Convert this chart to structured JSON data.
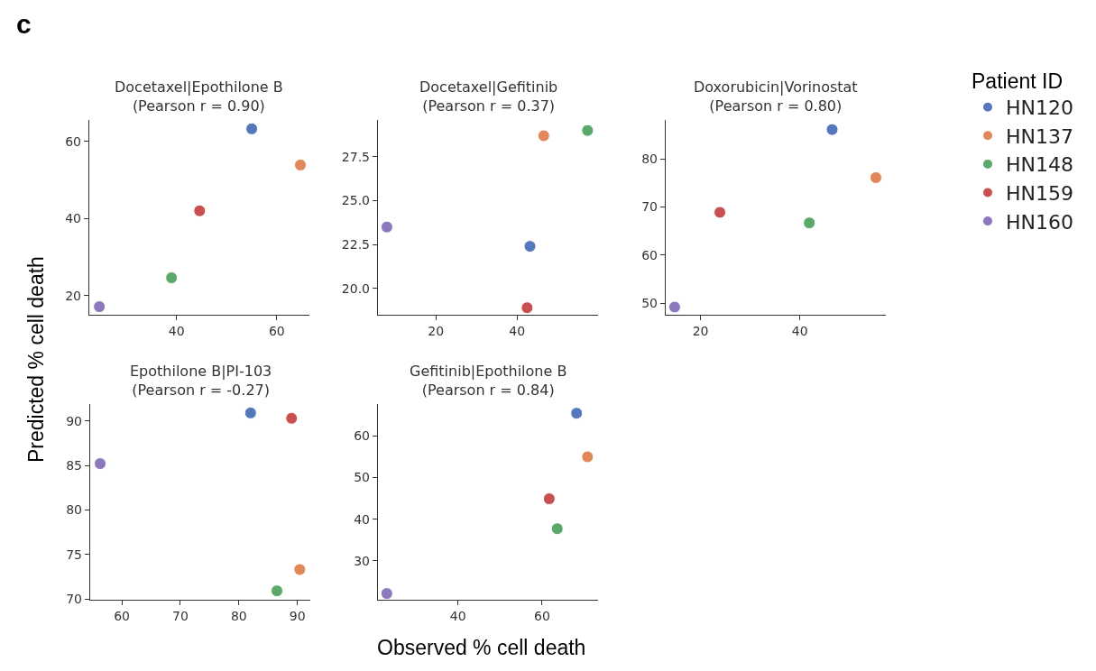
{
  "chart_data": [
    {
      "type": "scatter",
      "title": "Docetaxel|Epothilone B",
      "subtitle": "(Pearson r = 0.90)",
      "xlabel": "Observed % cell death",
      "ylabel": "Predicted % cell death",
      "legend_title": "Patient ID",
      "legend": "right",
      "marker": "circle",
      "annotations": [
        "c"
      ],
      "xlim": [
        22.6,
        66.5
      ],
      "ylim": [
        15,
        65.6
      ],
      "xticks": [
        40,
        60
      ],
      "yticks": [
        20,
        40,
        60
      ],
      "series": [
        {
          "name": "HN120",
          "color": "#5577bb",
          "x": [
            55.0
          ],
          "values": [
            63.3
          ]
        },
        {
          "name": "HN137",
          "color": "#e0885a",
          "x": [
            64.7
          ],
          "values": [
            53.9
          ]
        },
        {
          "name": "HN148",
          "color": "#5aa86a",
          "x": [
            39.0
          ],
          "values": [
            24.6
          ]
        },
        {
          "name": "HN159",
          "color": "#c85050",
          "x": [
            44.6
          ],
          "values": [
            42.0
          ]
        },
        {
          "name": "HN160",
          "color": "#8c78bc",
          "x": [
            24.6
          ],
          "values": [
            17.1
          ]
        }
      ]
    },
    {
      "type": "scatter",
      "title": "Docetaxel|Gefitinib",
      "subtitle": "(Pearson r = 0.37)",
      "marker": "circle",
      "xlim": [
        5.7,
        60
      ],
      "ylim": [
        18.5,
        29.6
      ],
      "xticks": [
        20,
        40
      ],
      "yticks": [
        {
          "value": 20,
          "label": "20.0"
        },
        {
          "value": 22.5,
          "label": "22.5"
        },
        {
          "value": 25,
          "label": "25.0"
        },
        {
          "value": 27.5,
          "label": "27.5"
        }
      ],
      "series": [
        {
          "color": "#5577bb",
          "x": [
            43.2
          ],
          "values": [
            22.4
          ]
        },
        {
          "color": "#e0885a",
          "x": [
            46.6
          ],
          "values": [
            28.7
          ]
        },
        {
          "color": "#5aa86a",
          "x": [
            57.4
          ],
          "values": [
            29.0
          ]
        },
        {
          "color": "#c85050",
          "x": [
            42.5
          ],
          "values": [
            18.9
          ]
        },
        {
          "color": "#8c78bc",
          "x": [
            7.9
          ],
          "values": [
            23.5
          ]
        }
      ]
    },
    {
      "type": "scatter",
      "title": "Doxorubicin|Vorinostat",
      "subtitle": "(Pearson r = 0.80)",
      "marker": "circle",
      "xlim": [
        13,
        57.3
      ],
      "ylim": [
        47.6,
        88.1
      ],
      "xticks": [
        20,
        40
      ],
      "yticks": [
        50,
        60,
        70,
        80
      ],
      "series": [
        {
          "color": "#5577bb",
          "x": [
            46.5
          ],
          "values": [
            86.1
          ]
        },
        {
          "color": "#e0885a",
          "x": [
            55.3
          ],
          "values": [
            76.1
          ]
        },
        {
          "color": "#5aa86a",
          "x": [
            41.9
          ],
          "values": [
            66.7
          ]
        },
        {
          "color": "#c85050",
          "x": [
            23.9
          ],
          "values": [
            68.9
          ]
        },
        {
          "color": "#8c78bc",
          "x": [
            14.8
          ],
          "values": [
            49.2
          ]
        }
      ]
    },
    {
      "type": "scatter",
      "title": "Epothilone B|PI-103",
      "subtitle": "(Pearson r = -0.27)",
      "marker": "circle",
      "xlim": [
        54.6,
        92.2
      ],
      "ylim": [
        69.9,
        91.9
      ],
      "xticks": [
        60,
        70,
        80,
        90
      ],
      "yticks": [
        70,
        75,
        80,
        85,
        90
      ],
      "series": [
        {
          "color": "#5577bb",
          "x": [
            82.0
          ],
          "values": [
            90.9
          ]
        },
        {
          "color": "#e0885a",
          "x": [
            90.4
          ],
          "values": [
            73.3
          ]
        },
        {
          "color": "#5aa86a",
          "x": [
            86.5
          ],
          "values": [
            70.9
          ]
        },
        {
          "color": "#c85050",
          "x": [
            89.0
          ],
          "values": [
            90.3
          ]
        },
        {
          "color": "#8c78bc",
          "x": [
            56.3
          ],
          "values": [
            85.2
          ]
        }
      ]
    },
    {
      "type": "scatter",
      "title": "Gefitinib|Epothilone B",
      "subtitle": "(Pearson r = 0.84)",
      "marker": "circle",
      "xlim": [
        21,
        73.3
      ],
      "ylim": [
        20.6,
        67.7
      ],
      "xticks": [
        40,
        60
      ],
      "yticks": [
        30,
        40,
        50,
        60
      ],
      "series": [
        {
          "color": "#5577bb",
          "x": [
            68.2
          ],
          "values": [
            65.5
          ]
        },
        {
          "color": "#e0885a",
          "x": [
            70.8
          ],
          "values": [
            55.0
          ]
        },
        {
          "color": "#5aa86a",
          "x": [
            63.6
          ],
          "values": [
            37.7
          ]
        },
        {
          "color": "#c85050",
          "x": [
            61.7
          ],
          "values": [
            44.9
          ]
        },
        {
          "color": "#8c78bc",
          "x": [
            23.1
          ],
          "values": [
            22.1
          ]
        }
      ]
    }
  ]
}
